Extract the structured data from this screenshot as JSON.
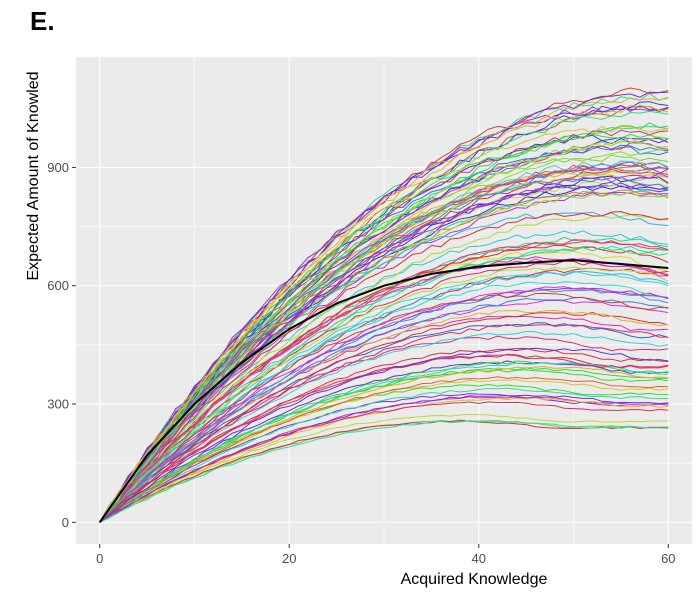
{
  "panel_label": "E.",
  "chart_data": {
    "type": "line",
    "title": "",
    "xlabel": "Acquired Knowledge",
    "ylabel": "Expected Amount of Knowled",
    "xlim": [
      -2.5,
      62.5
    ],
    "ylim": [
      -55,
      1180
    ],
    "x_ticks": [
      0,
      20,
      40,
      60
    ],
    "y_ticks": [
      0,
      300,
      600,
      900
    ],
    "x_tick_labels": [
      "0",
      "20",
      "40",
      "60"
    ],
    "y_tick_labels": [
      "0",
      "300",
      "600",
      "900"
    ],
    "grid": true,
    "legend": "none",
    "background_color": "#ebebeb",
    "gridline_color": "#ffffff",
    "mean_curve_color": "#000000",
    "x": [
      0,
      5,
      10,
      15,
      20,
      25,
      30,
      35,
      40,
      45,
      50,
      55,
      60
    ],
    "mean_curve": [
      0,
      170,
      300,
      405,
      490,
      555,
      600,
      630,
      648,
      658,
      665,
      655,
      645
    ],
    "series_count": 100,
    "series_plateau_range": [
      245,
      1100
    ],
    "series_plateau_x": [
      40,
      60
    ]
  }
}
